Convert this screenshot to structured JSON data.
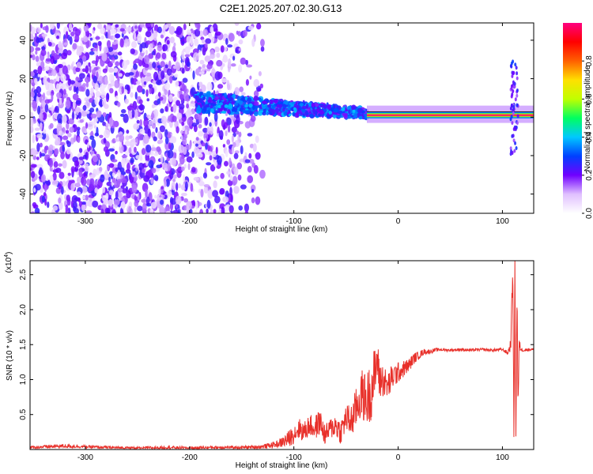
{
  "title": "C2E1.2025.207.02.30.G13",
  "chart_data": [
    {
      "type": "heatmap",
      "xlabel": "Height of straight line (km)",
      "ylabel": "Frequency (Hz)",
      "xlim": [
        -353,
        130
      ],
      "ylim": [
        -50,
        49
      ],
      "x_ticks": [
        -300,
        -200,
        -100,
        0,
        100
      ],
      "y_ticks": [
        -40,
        -20,
        0,
        20,
        40
      ],
      "grid": false,
      "colorbar": {
        "label": "Normalized spectral amplitude",
        "range": [
          0,
          1
        ],
        "ticks": [
          0.0,
          0.2,
          0.4,
          0.6,
          0.8
        ],
        "colors": [
          "#ffffff",
          "#e0c0ff",
          "#7000ff",
          "#0040ff",
          "#00c8ff",
          "#00ff60",
          "#c0ff00",
          "#ffe000",
          "#ff6000",
          "#ff0000",
          "#ff0080"
        ]
      },
      "description_regions": [
        {
          "x_range": [
            -353,
            -130
          ],
          "y_range": [
            -50,
            49
          ],
          "amplitude": 0.1,
          "pattern": "broadband noise"
        },
        {
          "x_range": [
            -195,
            -30
          ],
          "y_range": [
            -10,
            10
          ],
          "amplitude": 0.3,
          "pattern": "narrowing band"
        },
        {
          "x_range": [
            -30,
            130
          ],
          "y_range": [
            -1,
            3
          ],
          "amplitude": 1.0,
          "pattern": "carrier line near 1 Hz"
        },
        {
          "x_range": [
            108,
            115
          ],
          "y_range": [
            -20,
            30
          ],
          "amplitude": 0.15,
          "pattern": "vertical spike"
        }
      ]
    },
    {
      "type": "line",
      "xlabel": "Height of straight line (km)",
      "ylabel": "SNR (10 * v/v)",
      "y_multiplier_label": "(x10",
      "y_multiplier_exp": "4",
      "y_multiplier_close": ")",
      "xlim": [
        -353,
        130
      ],
      "ylim": [
        0,
        2.7
      ],
      "x_ticks": [
        -300,
        -200,
        -100,
        0,
        100
      ],
      "y_ticks": [
        0.5,
        1.0,
        1.5,
        2.0,
        2.5
      ],
      "y_tick_labels": [
        "0.5",
        "1.0",
        "1.5",
        "2.0",
        "2.5"
      ],
      "grid": false,
      "line_color": "#e8302a",
      "series": [
        {
          "x": [
            -353,
            -320,
            -300,
            -280,
            -250,
            -220,
            -200,
            -180,
            -150,
            -130,
            -115,
            -105,
            -95,
            -90,
            -85,
            -80,
            -75,
            -70,
            -65,
            -60,
            -55,
            -50,
            -45,
            -40,
            -35,
            -30,
            -25,
            -22,
            -20,
            -18,
            -15,
            -10,
            -5,
            0,
            5,
            10,
            15,
            20,
            25,
            30,
            35,
            40,
            50,
            60,
            70,
            80,
            90,
            100,
            105,
            108,
            110,
            111,
            112,
            113,
            114,
            115,
            116,
            118,
            120,
            125,
            130
          ],
          "y": [
            0.03,
            0.05,
            0.04,
            0.03,
            0.02,
            0.03,
            0.02,
            0.03,
            0.03,
            0.04,
            0.08,
            0.15,
            0.3,
            0.25,
            0.35,
            0.3,
            0.4,
            0.2,
            0.3,
            0.35,
            0.25,
            0.45,
            0.4,
            0.6,
            0.8,
            0.7,
            0.9,
            1.1,
            1.3,
            1.0,
            1.0,
            0.9,
            1.05,
            1.1,
            1.15,
            1.2,
            1.3,
            1.35,
            1.4,
            1.4,
            1.42,
            1.43,
            1.42,
            1.43,
            1.42,
            1.43,
            1.42,
            1.43,
            1.38,
            1.5,
            2.6,
            0.1,
            2.65,
            0.15,
            2.4,
            0.5,
            1.5,
            1.43,
            1.42,
            1.43,
            1.43
          ],
          "noise_amplitude": [
            0.02,
            0.03,
            0.02,
            0.02,
            0.02,
            0.02,
            0.02,
            0.02,
            0.02,
            0.03,
            0.05,
            0.12,
            0.15,
            0.15,
            0.15,
            0.18,
            0.18,
            0.15,
            0.15,
            0.18,
            0.18,
            0.2,
            0.25,
            0.3,
            0.35,
            0.4,
            0.45,
            0.4,
            0.3,
            0.3,
            0.25,
            0.2,
            0.2,
            0.15,
            0.12,
            0.1,
            0.08,
            0.06,
            0.04,
            0.03,
            0.03,
            0.02,
            0.02,
            0.02,
            0.02,
            0.02,
            0.02,
            0.02,
            0.03,
            0.1,
            0.2,
            0.2,
            0.2,
            0.2,
            0.2,
            0.2,
            0.1,
            0.02,
            0.02,
            0.02,
            0.02
          ]
        }
      ]
    }
  ]
}
